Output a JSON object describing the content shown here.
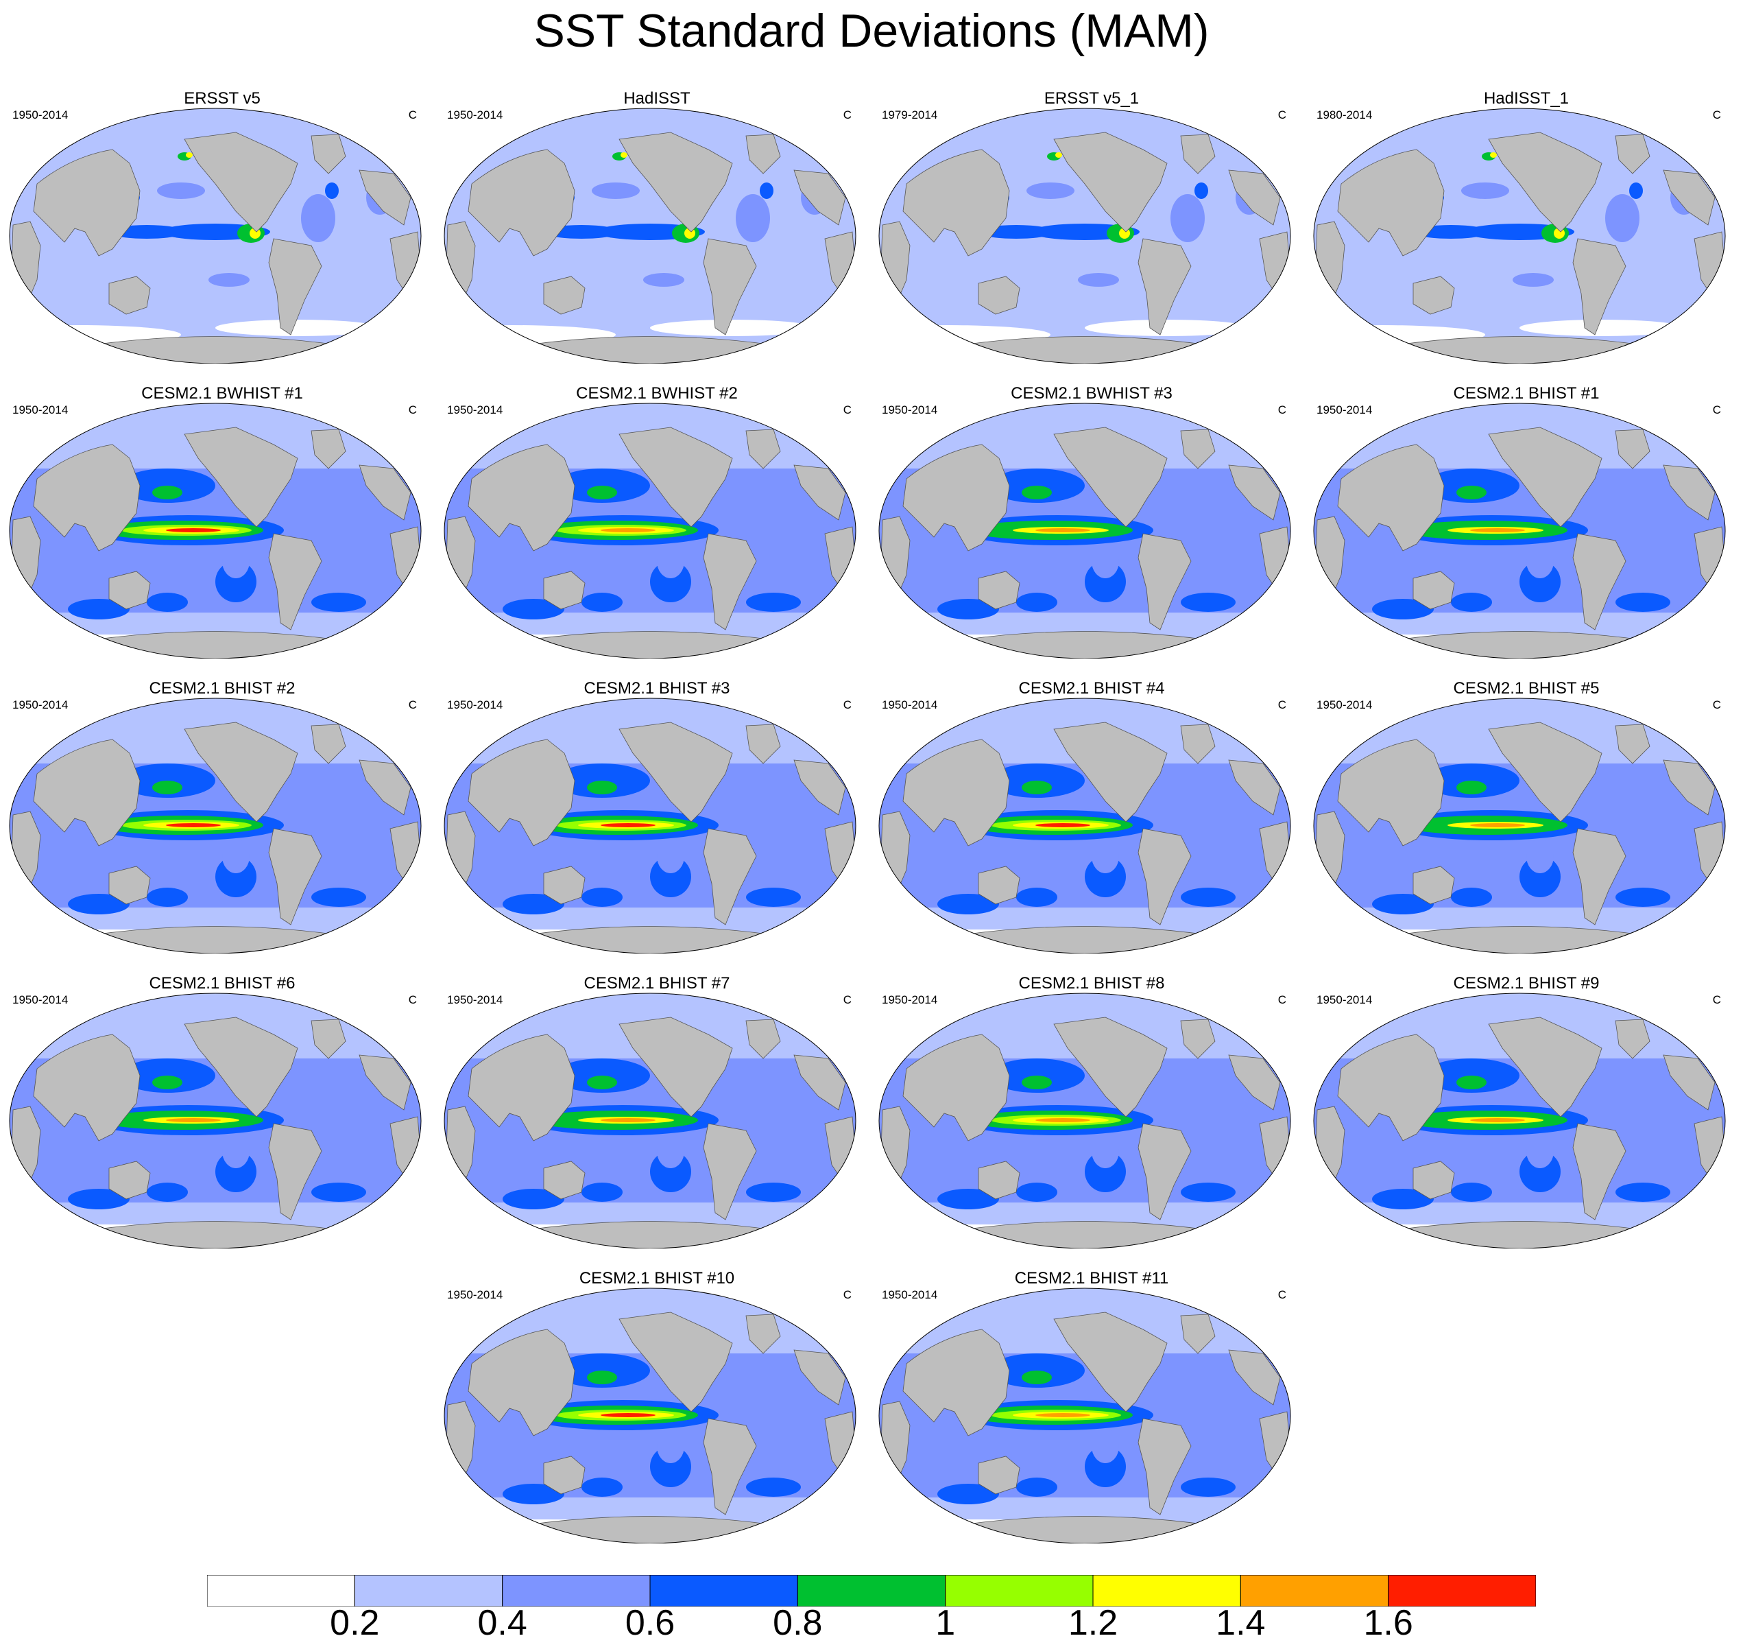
{
  "title": "SST Standard Deviations (MAM)",
  "units": "C",
  "panels": [
    {
      "title": "ERSST v5",
      "period": "1950-2014",
      "units": "C"
    },
    {
      "title": "HadISST",
      "period": "1950-2014",
      "units": "C"
    },
    {
      "title": "ERSST v5_1",
      "period": "1979-2014",
      "units": "C"
    },
    {
      "title": "HadISST_1",
      "period": "1980-2014",
      "units": "C"
    },
    {
      "title": "CESM2.1 BWHIST #1",
      "period": "1950-2014",
      "units": "C"
    },
    {
      "title": "CESM2.1 BWHIST #2",
      "period": "1950-2014",
      "units": "C"
    },
    {
      "title": "CESM2.1 BWHIST #3",
      "period": "1950-2014",
      "units": "C"
    },
    {
      "title": "CESM2.1 BHIST #1",
      "period": "1950-2014",
      "units": "C"
    },
    {
      "title": "CESM2.1 BHIST #2",
      "period": "1950-2014",
      "units": "C"
    },
    {
      "title": "CESM2.1 BHIST #3",
      "period": "1950-2014",
      "units": "C"
    },
    {
      "title": "CESM2.1 BHIST #4",
      "period": "1950-2014",
      "units": "C"
    },
    {
      "title": "CESM2.1 BHIST #5",
      "period": "1950-2014",
      "units": "C"
    },
    {
      "title": "CESM2.1 BHIST #6",
      "period": "1950-2014",
      "units": "C"
    },
    {
      "title": "CESM2.1 BHIST #7",
      "period": "1950-2014",
      "units": "C"
    },
    {
      "title": "CESM2.1 BHIST #8",
      "period": "1950-2014",
      "units": "C"
    },
    {
      "title": "CESM2.1 BHIST #9",
      "period": "1950-2014",
      "units": "C"
    },
    {
      "title": "CESM2.1 BHIST #10",
      "period": "1950-2014",
      "units": "C"
    },
    {
      "title": "CESM2.1 BHIST #11",
      "period": "1950-2014",
      "units": "C"
    }
  ],
  "colorbar": {
    "colors": [
      "#ffffff",
      "#b4c3ff",
      "#7d94ff",
      "#0a5aff",
      "#00c030",
      "#96ff00",
      "#ffff00",
      "#ffa000",
      "#ff1e00"
    ],
    "labels": [
      "0.2",
      "0.4",
      "0.6",
      "0.8",
      "1",
      "1.2",
      "1.4",
      "1.6"
    ]
  },
  "map_colors": {
    "land": "#bebebe",
    "ocean_low": "#b4c3ff"
  }
}
